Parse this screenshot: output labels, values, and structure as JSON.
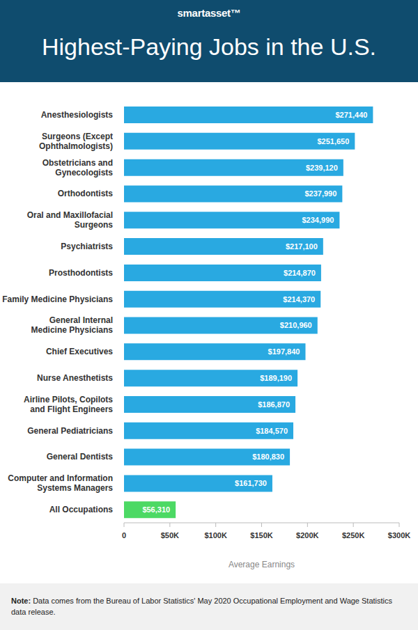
{
  "header": {
    "brand": "smartasset™"
  },
  "chart_data": {
    "type": "bar",
    "title": "Highest-Paying Jobs in the U.S.",
    "orientation": "horizontal",
    "x_label": "Average Earnings",
    "categories": [
      "Anesthesiologists",
      "Surgeons (Except Ophthalmologists)",
      "Obstetricians and Gynecologists",
      "Orthodontists",
      "Oral and Maxillofacial Surgeons",
      "Psychiatrists",
      "Prosthodontists",
      "Family Medicine Physicians",
      "General Internal Medicine Physicians",
      "Chief Executives",
      "Nurse Anesthetists",
      "Airline Pilots, Copilots and Flight Engineers",
      "General Pediatricians",
      "General Dentists",
      "Computer and Information Systems Managers",
      "All Occupations"
    ],
    "values": [
      271440,
      251650,
      239120,
      237990,
      234990,
      217100,
      214870,
      214370,
      210960,
      197840,
      189190,
      186870,
      184570,
      180830,
      161730,
      56310
    ],
    "value_labels": [
      "$271,440",
      "$251,650",
      "$239,120",
      "$237,990",
      "$234,990",
      "$217,100",
      "$214,870",
      "$214,370",
      "$210,960",
      "$197,840",
      "$189,190",
      "$186,870",
      "$184,570",
      "$180,830",
      "$161,730",
      "$56,310"
    ],
    "colors": [
      "#29a9e1",
      "#29a9e1",
      "#29a9e1",
      "#29a9e1",
      "#29a9e1",
      "#29a9e1",
      "#29a9e1",
      "#29a9e1",
      "#29a9e1",
      "#29a9e1",
      "#29a9e1",
      "#29a9e1",
      "#29a9e1",
      "#29a9e1",
      "#29a9e1",
      "#4cd964"
    ],
    "xlim": [
      0,
      300000
    ],
    "xticks": [
      0,
      {
        "value": 50000,
        "label": "$50K"
      },
      {
        "value": 100000,
        "label": "$100K"
      },
      {
        "value": 150000,
        "label": "$150K"
      },
      {
        "value": 200000,
        "label": "$200K"
      },
      {
        "value": 250000,
        "label": "$250K"
      },
      {
        "value": 300000,
        "label": "$300K"
      }
    ],
    "grid": false,
    "data_labels": true
  },
  "footer": {
    "note": "Note: Data comes from the Bureau of Labor Statistics' May 2020 Occupational Employment and Wage Statistics data release."
  }
}
